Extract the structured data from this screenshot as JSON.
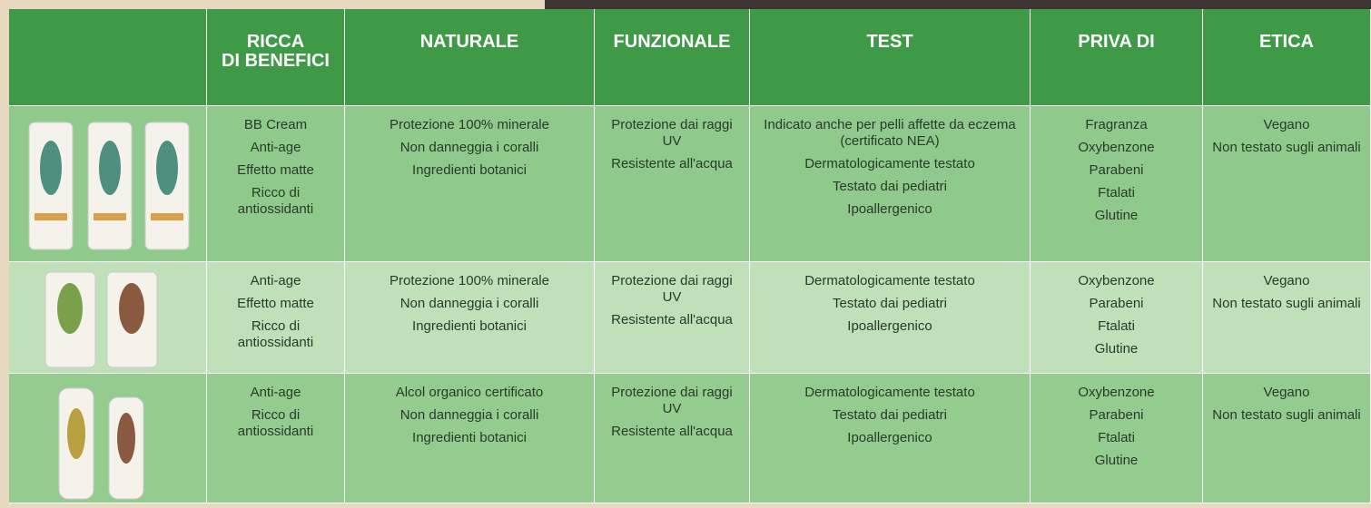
{
  "header": {
    "columns": [
      [
        "RICCA",
        "DI BENEFICI"
      ],
      [
        "NATURALE"
      ],
      [
        "FUNZIONALE"
      ],
      [
        "TEST"
      ],
      [
        "PRIVA DI"
      ],
      [
        "ETICA"
      ]
    ]
  },
  "rows": [
    {
      "cells": [
        [
          "BB Cream",
          "Anti-age",
          "Effetto matte",
          "Ricco di antiossidanti"
        ],
        [
          "Protezione 100% minerale",
          "Non danneggia i coralli",
          "Ingredienti botanici"
        ],
        [
          "Protezione dai raggi UV",
          "Resistente all'acqua"
        ],
        [
          "Indicato anche per pelli affette da eczema (certificato NEA)",
          "Dermatologicamente testato",
          "Testato dai pediatri",
          "Ipoallergenico"
        ],
        [
          "Fragranza",
          "Oxybenzone",
          "Parabeni",
          "Ftalati",
          "Glutine"
        ],
        [
          "Vegano",
          "Non testato sugli animali"
        ]
      ]
    },
    {
      "cells": [
        [
          "Anti-age",
          "Effetto matte",
          "Ricco di antiossidanti"
        ],
        [
          "Protezione 100% minerale",
          "Non danneggia i coralli",
          "Ingredienti botanici"
        ],
        [
          "Protezione dai raggi UV",
          "Resistente all'acqua"
        ],
        [
          "Dermatologicamente testato",
          "Testato dai pediatri",
          "Ipoallergenico"
        ],
        [
          "Oxybenzone",
          "Parabeni",
          "Ftalati",
          "Glutine"
        ],
        [
          "Vegano",
          "Non testato sugli animali"
        ]
      ]
    },
    {
      "cells": [
        [
          "Anti-age",
          "Ricco di antiossidanti"
        ],
        [
          "Alcol organico certificato",
          "Non danneggia i coralli",
          "Ingredienti botanici"
        ],
        [
          "Protezione dai raggi UV",
          "Resistente all'acqua"
        ],
        [
          "Dermatologicamente testato",
          "Testato dai pediatri",
          "Ipoallergenico"
        ],
        [
          "Oxybenzone",
          "Parabeni",
          "Ftalati",
          "Glutine"
        ],
        [
          "Vegano",
          "Non testato sugli animali"
        ]
      ]
    }
  ]
}
